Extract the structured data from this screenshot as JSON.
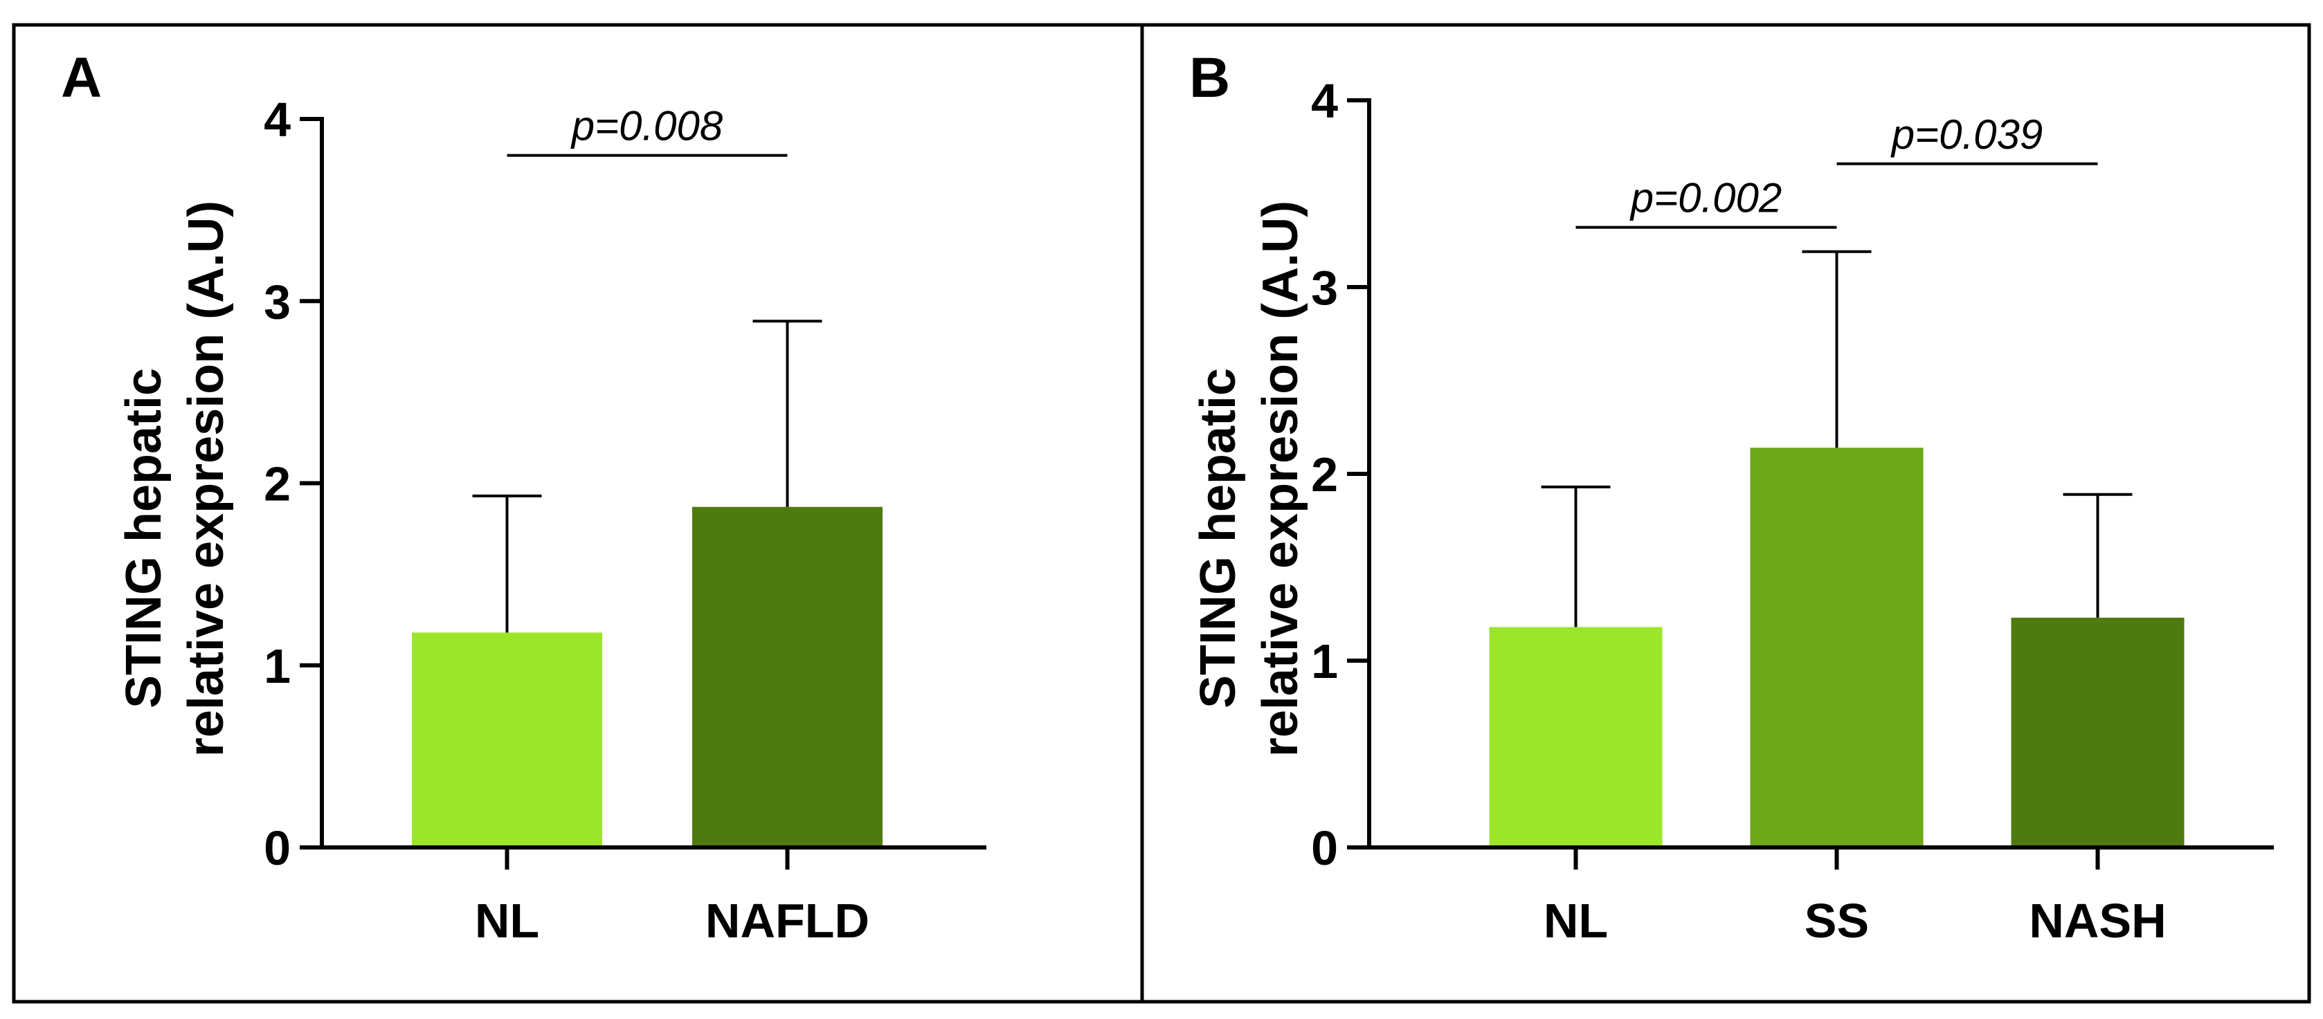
{
  "chart_data": [
    {
      "type": "bar",
      "panel": "A",
      "categories": [
        "NL",
        "NAFLD"
      ],
      "values": [
        1.18,
        1.87
      ],
      "error_upper": [
        1.93,
        2.89
      ],
      "colors": [
        "#9BE62A",
        "#4E7A10"
      ],
      "ylabel_lines": [
        "STING hepatic",
        "relative expresion (A.U)"
      ],
      "yticks": [
        "0",
        "1",
        "2",
        "3",
        "4"
      ],
      "ylim": [
        0,
        4
      ],
      "annotations": [
        {
          "label": "p=0.008",
          "from": 0,
          "to": 1,
          "y": 3.8
        }
      ]
    },
    {
      "type": "bar",
      "panel": "B",
      "categories": [
        "NL",
        "SS",
        "NASH"
      ],
      "values": [
        1.18,
        2.14,
        1.23
      ],
      "error_upper": [
        1.93,
        3.19,
        1.89
      ],
      "colors": [
        "#9BE62A",
        "#6DA818",
        "#4E7A10"
      ],
      "ylabel_lines": [
        "STING hepatic",
        "relative expresion (A.U)"
      ],
      "yticks": [
        "0",
        "1",
        "2",
        "3",
        "4"
      ],
      "ylim": [
        0,
        4
      ],
      "annotations": [
        {
          "label": "p=0.002",
          "from": 0,
          "to": 1,
          "y": 3.32
        },
        {
          "label": "p=0.039",
          "from": 1,
          "to": 2,
          "y": 3.66
        }
      ]
    }
  ]
}
